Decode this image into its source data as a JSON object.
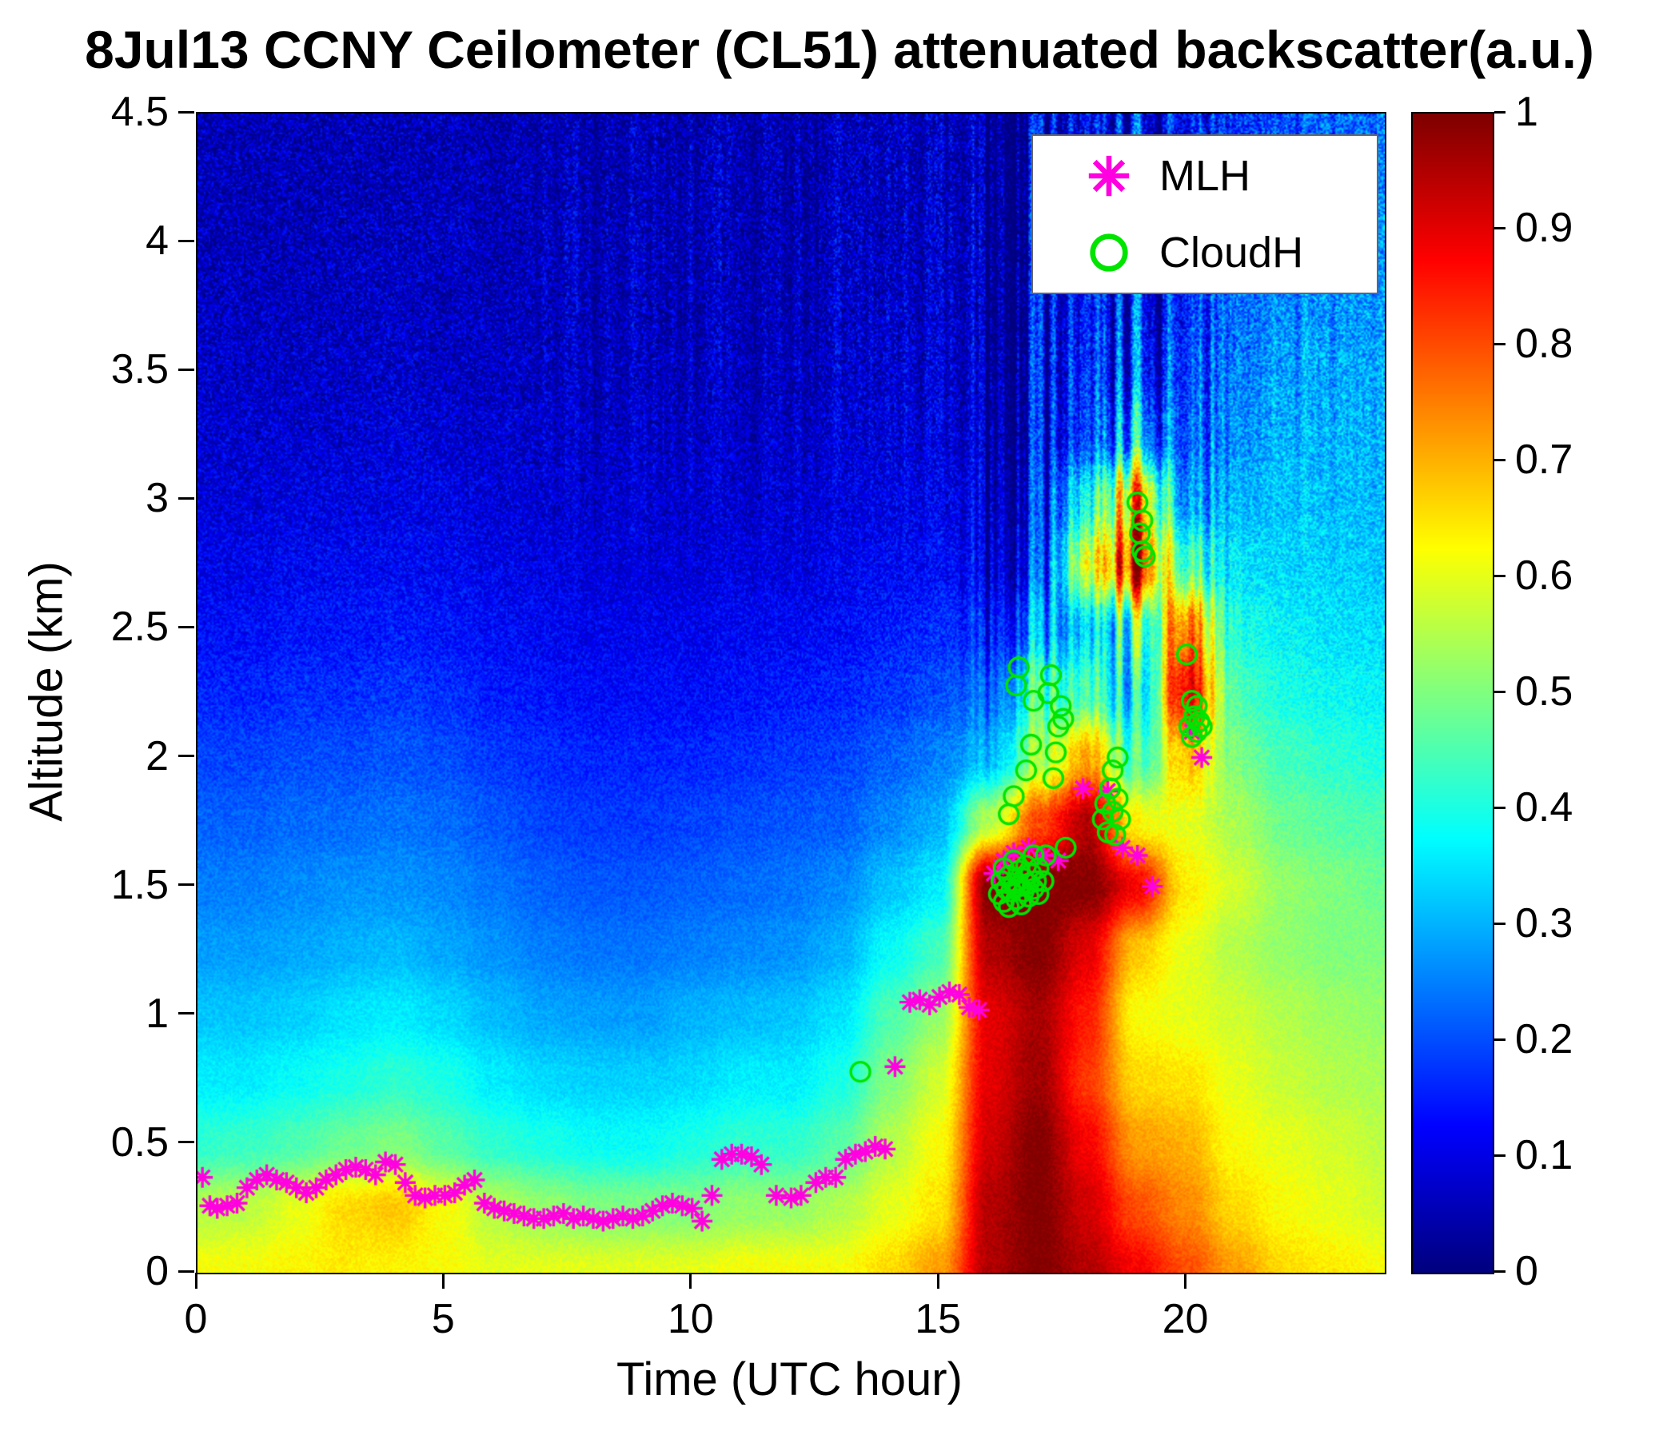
{
  "chart_data": {
    "type": "heatmap",
    "title": "8Jul13 CCNY Ceilometer (CL51) attenuated backscatter(a.u.)",
    "xlabel": "Time (UTC hour)",
    "ylabel": "Altitude (km)",
    "xlim": [
      0,
      24
    ],
    "ylim": [
      0,
      4.5
    ],
    "xtick_values": [
      0,
      5,
      10,
      15,
      20
    ],
    "xtick_labels": [
      "0",
      "5",
      "10",
      "15",
      "20"
    ],
    "ytick_values": [
      0,
      0.5,
      1,
      1.5,
      2,
      2.5,
      3,
      3.5,
      4,
      4.5
    ],
    "ytick_labels": [
      "0",
      "0.5",
      "1",
      "1.5",
      "2",
      "2.5",
      "3",
      "3.5",
      "4",
      "4.5"
    ],
    "colormap": "jet",
    "colorbar": {
      "min": 0,
      "max": 1,
      "tick_values": [
        0,
        0.1,
        0.2,
        0.3,
        0.4,
        0.5,
        0.6,
        0.7,
        0.8,
        0.9,
        1
      ],
      "tick_labels": [
        "0",
        "0.1",
        "0.2",
        "0.3",
        "0.4",
        "0.5",
        "0.6",
        "0.7",
        "0.8",
        "0.9",
        "1"
      ]
    },
    "grid": {
      "times": [
        0,
        1,
        2,
        3,
        4,
        5,
        6,
        7,
        8,
        9,
        10,
        11,
        12,
        13,
        14,
        15,
        16,
        17,
        18,
        19,
        20,
        21,
        22,
        23,
        24
      ],
      "altitudes": [
        0,
        0.25,
        0.5,
        0.75,
        1.0,
        1.25,
        1.5,
        1.75,
        2.0,
        2.25,
        2.5,
        2.75,
        3.0,
        3.25,
        3.5,
        3.75,
        4.0,
        4.25,
        4.5
      ],
      "values": [
        [
          0.62,
          0.62,
          0.63,
          0.64,
          0.63,
          0.62,
          0.6,
          0.6,
          0.6,
          0.6,
          0.6,
          0.62,
          0.62,
          0.62,
          0.66,
          0.72,
          0.95,
          1.0,
          0.95,
          0.88,
          0.8,
          0.72,
          0.66,
          0.64,
          0.62
        ],
        [
          0.55,
          0.56,
          0.6,
          0.66,
          0.68,
          0.62,
          0.55,
          0.52,
          0.5,
          0.5,
          0.5,
          0.52,
          0.52,
          0.55,
          0.6,
          0.65,
          0.95,
          1.0,
          0.92,
          0.8,
          0.74,
          0.66,
          0.62,
          0.6,
          0.58
        ],
        [
          0.42,
          0.43,
          0.45,
          0.48,
          0.5,
          0.46,
          0.42,
          0.4,
          0.38,
          0.38,
          0.4,
          0.42,
          0.42,
          0.46,
          0.55,
          0.62,
          0.92,
          1.0,
          0.88,
          0.72,
          0.7,
          0.62,
          0.6,
          0.58,
          0.56
        ],
        [
          0.36,
          0.36,
          0.38,
          0.4,
          0.42,
          0.4,
          0.36,
          0.34,
          0.33,
          0.33,
          0.34,
          0.36,
          0.36,
          0.4,
          0.5,
          0.58,
          0.9,
          0.97,
          0.82,
          0.66,
          0.65,
          0.6,
          0.57,
          0.55,
          0.54
        ],
        [
          0.32,
          0.32,
          0.33,
          0.35,
          0.36,
          0.34,
          0.31,
          0.29,
          0.28,
          0.28,
          0.3,
          0.31,
          0.32,
          0.35,
          0.45,
          0.52,
          0.9,
          0.96,
          0.85,
          0.62,
          0.6,
          0.58,
          0.55,
          0.53,
          0.52
        ],
        [
          0.28,
          0.28,
          0.29,
          0.3,
          0.31,
          0.29,
          0.27,
          0.25,
          0.24,
          0.24,
          0.25,
          0.26,
          0.27,
          0.3,
          0.38,
          0.44,
          0.95,
          1.0,
          0.9,
          0.68,
          0.6,
          0.55,
          0.52,
          0.5,
          0.5
        ],
        [
          0.25,
          0.25,
          0.26,
          0.27,
          0.27,
          0.26,
          0.24,
          0.22,
          0.21,
          0.21,
          0.22,
          0.23,
          0.24,
          0.26,
          0.32,
          0.36,
          1.0,
          1.0,
          1.0,
          0.88,
          0.64,
          0.58,
          0.52,
          0.5,
          0.48
        ],
        [
          0.22,
          0.22,
          0.23,
          0.23,
          0.24,
          0.23,
          0.21,
          0.19,
          0.18,
          0.18,
          0.19,
          0.2,
          0.21,
          0.22,
          0.26,
          0.3,
          0.55,
          0.8,
          0.95,
          0.62,
          0.6,
          0.54,
          0.48,
          0.46,
          0.45
        ],
        [
          0.19,
          0.19,
          0.2,
          0.2,
          0.21,
          0.2,
          0.18,
          0.17,
          0.16,
          0.16,
          0.16,
          0.17,
          0.18,
          0.19,
          0.22,
          0.25,
          0.32,
          0.52,
          0.7,
          0.42,
          0.68,
          0.5,
          0.44,
          0.42,
          0.4
        ],
        [
          0.16,
          0.16,
          0.17,
          0.17,
          0.18,
          0.17,
          0.15,
          0.14,
          0.13,
          0.13,
          0.13,
          0.14,
          0.15,
          0.16,
          0.18,
          0.2,
          0.25,
          0.42,
          0.42,
          0.32,
          0.88,
          0.45,
          0.4,
          0.38,
          0.37
        ],
        [
          0.13,
          0.13,
          0.14,
          0.14,
          0.15,
          0.14,
          0.13,
          0.12,
          0.11,
          0.11,
          0.11,
          0.12,
          0.12,
          0.13,
          0.15,
          0.17,
          0.18,
          0.25,
          0.3,
          0.4,
          0.75,
          0.4,
          0.37,
          0.35,
          0.34
        ],
        [
          0.11,
          0.11,
          0.12,
          0.12,
          0.12,
          0.12,
          0.11,
          0.1,
          0.09,
          0.09,
          0.09,
          0.1,
          0.1,
          0.11,
          0.12,
          0.13,
          0.12,
          0.15,
          0.55,
          0.85,
          0.42,
          0.35,
          0.34,
          0.33,
          0.32
        ],
        [
          0.09,
          0.09,
          0.1,
          0.1,
          0.1,
          0.1,
          0.09,
          0.08,
          0.08,
          0.08,
          0.08,
          0.08,
          0.09,
          0.09,
          0.1,
          0.11,
          0.1,
          0.12,
          0.35,
          0.7,
          0.25,
          0.3,
          0.32,
          0.31,
          0.3
        ],
        [
          0.08,
          0.08,
          0.08,
          0.08,
          0.09,
          0.08,
          0.08,
          0.07,
          0.07,
          0.07,
          0.07,
          0.07,
          0.08,
          0.08,
          0.09,
          0.09,
          0.08,
          0.1,
          0.15,
          0.28,
          0.18,
          0.26,
          0.3,
          0.3,
          0.29
        ],
        [
          0.07,
          0.07,
          0.07,
          0.07,
          0.08,
          0.07,
          0.07,
          0.06,
          0.06,
          0.06,
          0.06,
          0.06,
          0.07,
          0.07,
          0.08,
          0.08,
          0.07,
          0.09,
          0.12,
          0.15,
          0.15,
          0.24,
          0.28,
          0.28,
          0.28
        ],
        [
          0.06,
          0.06,
          0.06,
          0.06,
          0.07,
          0.06,
          0.06,
          0.05,
          0.05,
          0.05,
          0.05,
          0.06,
          0.06,
          0.06,
          0.07,
          0.07,
          0.06,
          0.08,
          0.1,
          0.12,
          0.13,
          0.22,
          0.26,
          0.26,
          0.26
        ],
        [
          0.05,
          0.05,
          0.05,
          0.06,
          0.06,
          0.06,
          0.05,
          0.05,
          0.05,
          0.05,
          0.05,
          0.05,
          0.05,
          0.06,
          0.06,
          0.07,
          0.06,
          0.07,
          0.09,
          0.1,
          0.12,
          0.2,
          0.24,
          0.25,
          0.25
        ],
        [
          0.05,
          0.05,
          0.05,
          0.05,
          0.05,
          0.05,
          0.05,
          0.04,
          0.04,
          0.04,
          0.05,
          0.05,
          0.05,
          0.05,
          0.06,
          0.06,
          0.05,
          0.07,
          0.08,
          0.09,
          0.11,
          0.18,
          0.22,
          0.23,
          0.23
        ],
        [
          0.04,
          0.04,
          0.05,
          0.05,
          0.05,
          0.05,
          0.04,
          0.04,
          0.04,
          0.04,
          0.04,
          0.05,
          0.05,
          0.05,
          0.06,
          0.06,
          0.05,
          0.06,
          0.08,
          0.09,
          0.1,
          0.16,
          0.2,
          0.22,
          0.22
        ]
      ]
    },
    "series": [
      {
        "name": "MLH",
        "marker": "asterisk",
        "color": "#ff00e0",
        "points": [
          [
            0.1,
            0.37
          ],
          [
            0.25,
            0.26
          ],
          [
            0.4,
            0.25
          ],
          [
            0.6,
            0.26
          ],
          [
            0.8,
            0.27
          ],
          [
            1.0,
            0.33
          ],
          [
            1.2,
            0.36
          ],
          [
            1.4,
            0.38
          ],
          [
            1.6,
            0.36
          ],
          [
            1.8,
            0.35
          ],
          [
            2.0,
            0.33
          ],
          [
            2.2,
            0.31
          ],
          [
            2.4,
            0.33
          ],
          [
            2.6,
            0.36
          ],
          [
            2.8,
            0.38
          ],
          [
            3.0,
            0.4
          ],
          [
            3.2,
            0.41
          ],
          [
            3.4,
            0.4
          ],
          [
            3.6,
            0.38
          ],
          [
            3.8,
            0.43
          ],
          [
            4.0,
            0.42
          ],
          [
            4.2,
            0.35
          ],
          [
            4.4,
            0.3
          ],
          [
            4.6,
            0.29
          ],
          [
            4.8,
            0.3
          ],
          [
            5.0,
            0.3
          ],
          [
            5.2,
            0.31
          ],
          [
            5.4,
            0.34
          ],
          [
            5.6,
            0.36
          ],
          [
            5.8,
            0.27
          ],
          [
            6.0,
            0.25
          ],
          [
            6.2,
            0.24
          ],
          [
            6.4,
            0.23
          ],
          [
            6.6,
            0.22
          ],
          [
            6.8,
            0.21
          ],
          [
            7.0,
            0.21
          ],
          [
            7.2,
            0.22
          ],
          [
            7.4,
            0.23
          ],
          [
            7.6,
            0.21
          ],
          [
            7.8,
            0.22
          ],
          [
            8.0,
            0.21
          ],
          [
            8.2,
            0.2
          ],
          [
            8.4,
            0.21
          ],
          [
            8.6,
            0.22
          ],
          [
            8.8,
            0.21
          ],
          [
            9.0,
            0.22
          ],
          [
            9.2,
            0.24
          ],
          [
            9.4,
            0.26
          ],
          [
            9.6,
            0.27
          ],
          [
            9.8,
            0.26
          ],
          [
            10.0,
            0.25
          ],
          [
            10.2,
            0.2
          ],
          [
            10.4,
            0.3
          ],
          [
            10.6,
            0.44
          ],
          [
            10.8,
            0.46
          ],
          [
            11.0,
            0.46
          ],
          [
            11.2,
            0.45
          ],
          [
            11.4,
            0.42
          ],
          [
            11.7,
            0.3
          ],
          [
            12.0,
            0.29
          ],
          [
            12.2,
            0.3
          ],
          [
            12.5,
            0.35
          ],
          [
            12.7,
            0.37
          ],
          [
            12.9,
            0.37
          ],
          [
            13.1,
            0.44
          ],
          [
            13.3,
            0.46
          ],
          [
            13.5,
            0.47
          ],
          [
            13.7,
            0.49
          ],
          [
            13.9,
            0.48
          ],
          [
            14.1,
            0.8
          ],
          [
            14.4,
            1.05
          ],
          [
            14.6,
            1.06
          ],
          [
            14.8,
            1.04
          ],
          [
            15.0,
            1.07
          ],
          [
            15.2,
            1.09
          ],
          [
            15.4,
            1.08
          ],
          [
            15.6,
            1.03
          ],
          [
            15.8,
            1.02
          ],
          [
            16.1,
            1.55
          ],
          [
            16.3,
            1.6
          ],
          [
            16.5,
            1.63
          ],
          [
            16.8,
            1.65
          ],
          [
            17.1,
            1.62
          ],
          [
            17.4,
            1.6
          ],
          [
            17.9,
            1.88
          ],
          [
            18.4,
            1.87
          ],
          [
            18.7,
            1.65
          ],
          [
            19.0,
            1.62
          ],
          [
            19.3,
            1.5
          ],
          [
            20.1,
            2.1
          ],
          [
            20.3,
            2.0
          ]
        ]
      },
      {
        "name": "CloudH",
        "marker": "circle",
        "color": "#00e400",
        "points": [
          [
            13.4,
            0.78
          ],
          [
            16.2,
            1.47
          ],
          [
            16.25,
            1.52
          ],
          [
            16.3,
            1.44
          ],
          [
            16.3,
            1.57
          ],
          [
            16.35,
            1.49
          ],
          [
            16.4,
            1.42
          ],
          [
            16.4,
            1.54
          ],
          [
            16.45,
            1.48
          ],
          [
            16.5,
            1.51
          ],
          [
            16.5,
            1.6
          ],
          [
            16.55,
            1.45
          ],
          [
            16.6,
            1.5
          ],
          [
            16.6,
            1.56
          ],
          [
            16.65,
            1.43
          ],
          [
            16.7,
            1.48
          ],
          [
            16.7,
            1.53
          ],
          [
            16.75,
            1.58
          ],
          [
            16.8,
            1.46
          ],
          [
            16.8,
            1.51
          ],
          [
            16.85,
            1.55
          ],
          [
            16.9,
            1.49
          ],
          [
            16.9,
            1.62
          ],
          [
            16.95,
            1.52
          ],
          [
            17.0,
            1.47
          ],
          [
            17.0,
            1.57
          ],
          [
            16.4,
            1.78
          ],
          [
            16.5,
            1.85
          ],
          [
            16.55,
            2.28
          ],
          [
            16.6,
            2.35
          ],
          [
            16.75,
            1.95
          ],
          [
            16.85,
            2.05
          ],
          [
            16.9,
            2.22
          ],
          [
            17.1,
            1.52
          ],
          [
            17.15,
            1.62
          ],
          [
            17.2,
            2.25
          ],
          [
            17.25,
            2.32
          ],
          [
            17.3,
            1.92
          ],
          [
            17.35,
            2.02
          ],
          [
            17.4,
            2.12
          ],
          [
            17.45,
            2.2
          ],
          [
            17.5,
            2.15
          ],
          [
            17.55,
            1.65
          ],
          [
            18.3,
            1.76
          ],
          [
            18.35,
            1.82
          ],
          [
            18.4,
            1.71
          ],
          [
            18.45,
            1.88
          ],
          [
            18.5,
            1.79
          ],
          [
            18.5,
            1.95
          ],
          [
            18.55,
            1.7
          ],
          [
            18.6,
            1.84
          ],
          [
            18.65,
            1.76
          ],
          [
            18.6,
            2.0
          ],
          [
            19.0,
            2.99
          ],
          [
            19.05,
            2.87
          ],
          [
            19.1,
            2.8
          ],
          [
            19.15,
            2.78
          ],
          [
            19.1,
            2.92
          ],
          [
            20.0,
            2.4
          ],
          [
            20.05,
            2.12
          ],
          [
            20.1,
            2.22
          ],
          [
            20.1,
            2.08
          ],
          [
            20.15,
            2.16
          ],
          [
            20.2,
            2.1
          ],
          [
            20.2,
            2.2
          ],
          [
            20.25,
            2.14
          ],
          [
            20.3,
            2.12
          ]
        ]
      }
    ],
    "legend": {
      "position": "top-right",
      "entries": [
        "MLH",
        "CloudH"
      ]
    }
  }
}
